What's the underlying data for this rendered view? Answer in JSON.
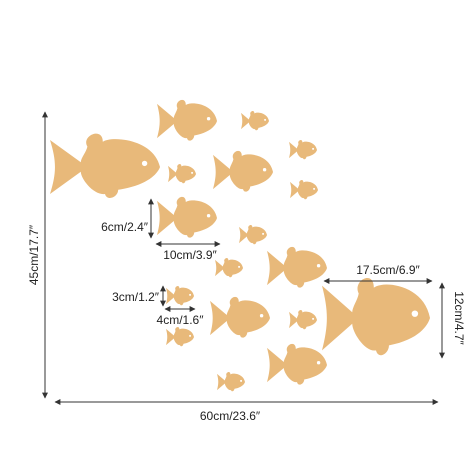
{
  "colors": {
    "fish": "#E8B97A",
    "eye": "#FFFFFF",
    "line": "#333333",
    "text": "#222222",
    "background": "#FFFFFF"
  },
  "dimensions": {
    "overall_height": "45cm/17.7″",
    "overall_width": "60cm/23.6″",
    "medium_fish_height": "6cm/2.4″",
    "medium_fish_width": "10cm/3.9″",
    "large_fish_width": "17.5cm/6.9″",
    "large_fish_height": "12cm/4.7″",
    "small_fish_height": "3cm/1.2″",
    "small_fish_width": "4cm/1.6″"
  },
  "fish_counts": {
    "total": 18
  }
}
